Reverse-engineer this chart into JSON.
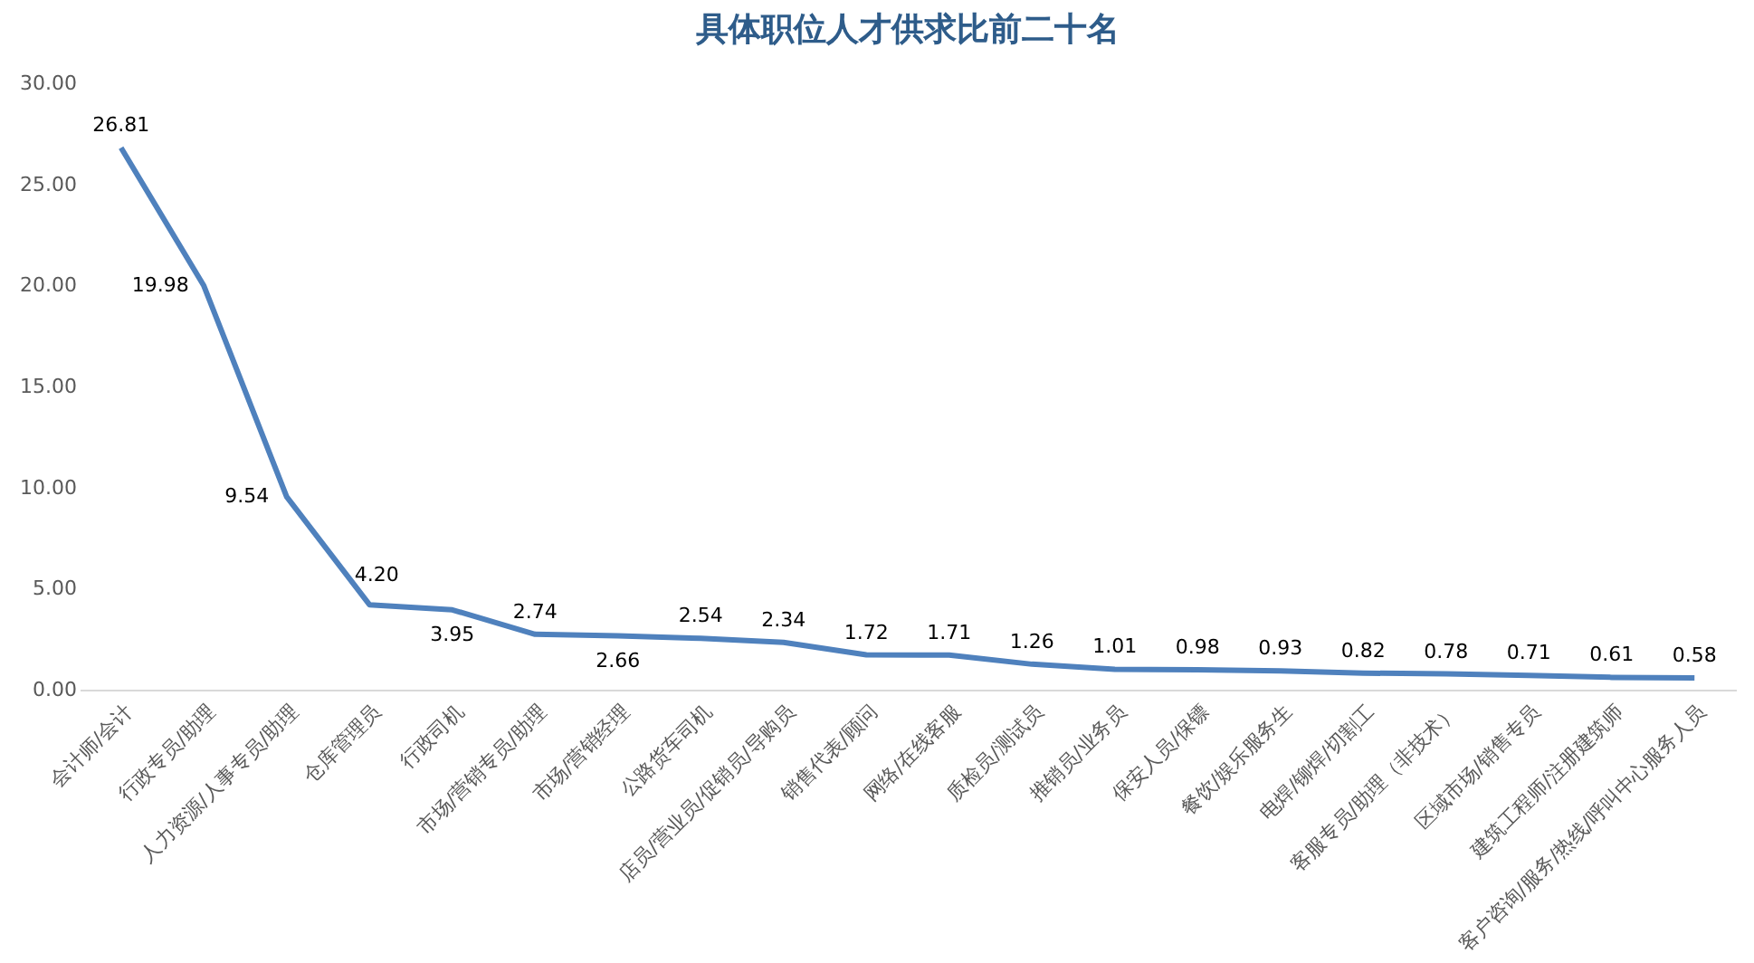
{
  "chart_data": {
    "type": "line",
    "title": "具体职位人才供求比前二十名",
    "categories": [
      "会计师/会计",
      "行政专员/助理",
      "人力资源/人事专员/助理",
      "仓库管理员",
      "行政司机",
      "市场/营销专员/助理",
      "市场/营销经理",
      "公路货车司机",
      "店员/营业员/促销员/导购员",
      "销售代表/顾问",
      "网络/在线客服",
      "质检员/测试员",
      "推销员/业务员",
      "保安人员/保镖",
      "餐饮/娱乐服务生",
      "电焊/铆焊/切割工",
      "客服专员/助理（非技术）",
      "区域市场/销售专员",
      "建筑工程师/注册建筑师",
      "客户咨询/服务/热线/呼叫中心服务人员"
    ],
    "series": [
      {
        "color": "#4f81bd",
        "values": [
          26.81,
          19.98,
          9.54,
          4.2,
          3.95,
          2.74,
          2.66,
          2.54,
          2.34,
          1.72,
          1.71,
          1.26,
          1.01,
          0.98,
          0.93,
          0.82,
          0.78,
          0.71,
          0.61,
          0.58
        ]
      }
    ],
    "ylim": [
      0,
      30
    ],
    "yticks": [
      {
        "value": 0,
        "label": "0.00"
      },
      {
        "value": 5,
        "label": "5.00"
      },
      {
        "value": 10,
        "label": "10.00"
      },
      {
        "value": 15,
        "label": "15.00"
      },
      {
        "value": 20,
        "label": "20.00"
      },
      {
        "value": 25,
        "label": "25.00"
      },
      {
        "value": 30,
        "label": "30.00"
      }
    ],
    "value_labels": [
      "26.81",
      "19.98",
      "9.54",
      "4.20",
      "3.95",
      "2.74",
      "2.66",
      "2.54",
      "2.34",
      "1.72",
      "1.71",
      "1.26",
      "1.01",
      "0.98",
      "0.93",
      "0.82",
      "0.78",
      "0.71",
      "0.61",
      "0.58"
    ],
    "grid": false,
    "marker": "none",
    "line_style": "solid"
  }
}
